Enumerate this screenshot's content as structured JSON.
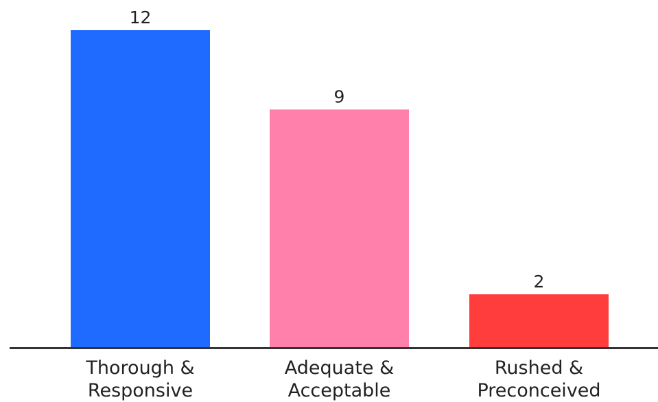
{
  "chart_data": {
    "type": "bar",
    "categories": [
      [
        "Thorough &",
        "Responsive"
      ],
      [
        "Adequate &",
        "Acceptable"
      ],
      [
        "Rushed &",
        "Preconceived"
      ]
    ],
    "values": [
      12,
      9,
      2
    ],
    "colors": [
      "#1f6bff",
      "#ff80aa",
      "#ff3d3d"
    ],
    "data_labels": [
      "12",
      "9",
      "2"
    ],
    "ylim": [
      0,
      12
    ],
    "grid": false,
    "title": "",
    "xlabel": "",
    "ylabel": ""
  }
}
